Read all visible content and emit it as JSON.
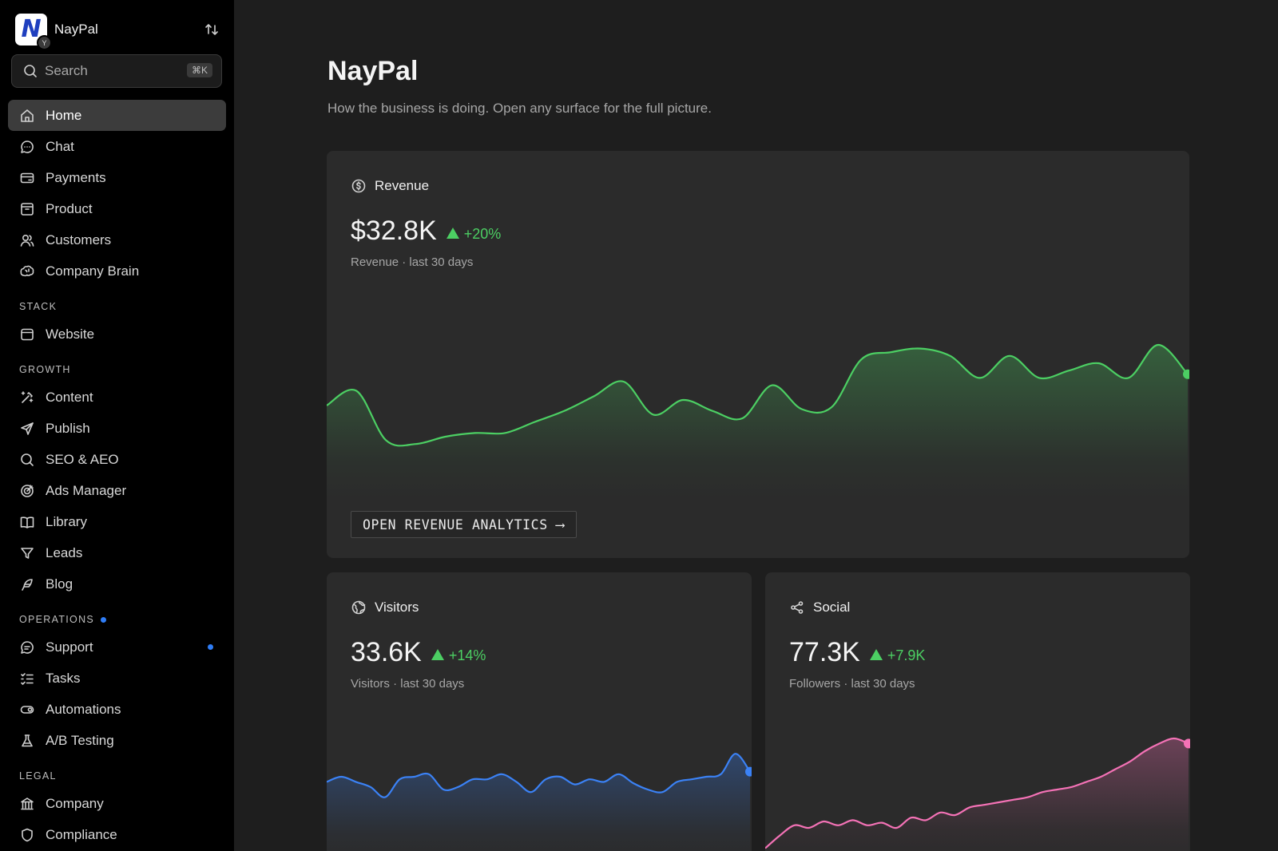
{
  "workspace": {
    "name": "NayPal",
    "logo_letter": "N",
    "badge": "Y"
  },
  "search": {
    "placeholder": "Search",
    "shortcut": "⌘K"
  },
  "nav_main": [
    {
      "label": "Home",
      "icon": "home-icon",
      "active": true
    },
    {
      "label": "Chat",
      "icon": "chat-icon"
    },
    {
      "label": "Payments",
      "icon": "card-icon"
    },
    {
      "label": "Product",
      "icon": "box-icon"
    },
    {
      "label": "Customers",
      "icon": "users-icon"
    },
    {
      "label": "Company Brain",
      "icon": "brain-icon"
    }
  ],
  "sections": {
    "stack": {
      "title": "STACK",
      "items": [
        {
          "label": "Website",
          "icon": "browser-icon"
        }
      ]
    },
    "growth": {
      "title": "GROWTH",
      "items": [
        {
          "label": "Content",
          "icon": "wand-icon"
        },
        {
          "label": "Publish",
          "icon": "send-icon"
        },
        {
          "label": "SEO & AEO",
          "icon": "search-icon"
        },
        {
          "label": "Ads Manager",
          "icon": "target-icon"
        },
        {
          "label": "Library",
          "icon": "book-icon"
        },
        {
          "label": "Leads",
          "icon": "filter-icon"
        },
        {
          "label": "Blog",
          "icon": "feather-icon"
        }
      ]
    },
    "operations": {
      "title": "OPERATIONS",
      "items": [
        {
          "label": "Support",
          "icon": "support-icon"
        },
        {
          "label": "Tasks",
          "icon": "tasks-icon"
        },
        {
          "label": "Automations",
          "icon": "toggle-icon"
        },
        {
          "label": "A/B Testing",
          "icon": "flask-icon"
        }
      ]
    },
    "legal": {
      "title": "LEGAL",
      "items": [
        {
          "label": "Company",
          "icon": "bank-icon"
        },
        {
          "label": "Compliance",
          "icon": "shield-icon"
        }
      ]
    }
  },
  "page": {
    "title": "NayPal",
    "subtitle": "How the business is doing. Open any surface for the full picture."
  },
  "cards": {
    "revenue": {
      "title": "Revenue",
      "value": "$32.8K",
      "delta": "+20%",
      "caption": "Revenue · last 30 days",
      "cta": "OPEN REVENUE ANALYTICS ⟶",
      "color": "#4ccf63"
    },
    "visitors": {
      "title": "Visitors",
      "value": "33.6K",
      "delta": "+14%",
      "caption": "Visitors · last 30 days",
      "color": "#3b82f6"
    },
    "social": {
      "title": "Social",
      "value": "77.3K",
      "delta": "+7.9K",
      "caption": "Followers · last 30 days",
      "color": "#f472b6"
    }
  },
  "chart_data": [
    {
      "type": "area",
      "series": [
        {
          "values": [
            0.47,
            0.55,
            0.28,
            0.26,
            0.3,
            0.32,
            0.32,
            0.38,
            0.44,
            0.52,
            0.6,
            0.42,
            0.5,
            0.44,
            0.4,
            0.58,
            0.45,
            0.46,
            0.72,
            0.76,
            0.78,
            0.74,
            0.62,
            0.74,
            0.62,
            0.66,
            0.7,
            0.62,
            0.8,
            0.64
          ]
        }
      ]
    },
    {
      "type": "area",
      "series": [
        {
          "values": [
            0.56,
            0.6,
            0.56,
            0.52,
            0.44,
            0.58,
            0.6,
            0.62,
            0.5,
            0.52,
            0.58,
            0.58,
            0.62,
            0.56,
            0.48,
            0.58,
            0.6,
            0.54,
            0.58,
            0.56,
            0.62,
            0.55,
            0.5,
            0.48,
            0.56,
            0.58,
            0.6,
            0.62,
            0.78,
            0.64
          ]
        }
      ]
    },
    {
      "type": "area",
      "series": [
        {
          "values": [
            0.04,
            0.14,
            0.22,
            0.2,
            0.25,
            0.22,
            0.26,
            0.22,
            0.24,
            0.2,
            0.28,
            0.26,
            0.32,
            0.3,
            0.36,
            0.38,
            0.4,
            0.42,
            0.44,
            0.48,
            0.5,
            0.52,
            0.56,
            0.6,
            0.66,
            0.72,
            0.8,
            0.86,
            0.9,
            0.86
          ]
        }
      ]
    }
  ]
}
